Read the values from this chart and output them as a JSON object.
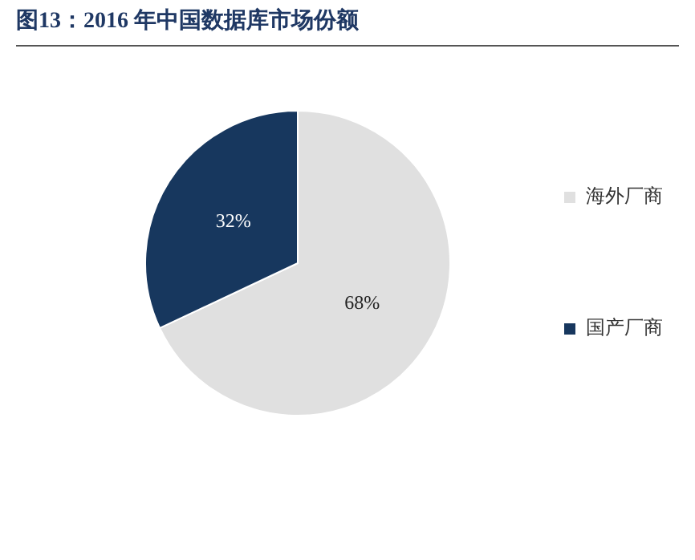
{
  "chart_data": {
    "type": "pie",
    "title": "图13：2016 年中国数据库市场份额",
    "categories": [
      "海外厂商",
      "国产厂商"
    ],
    "values": [
      68,
      32
    ],
    "colors": [
      "#e0e0e0",
      "#17375e"
    ],
    "value_labels": [
      "68%",
      "32%"
    ],
    "legend": "right"
  }
}
